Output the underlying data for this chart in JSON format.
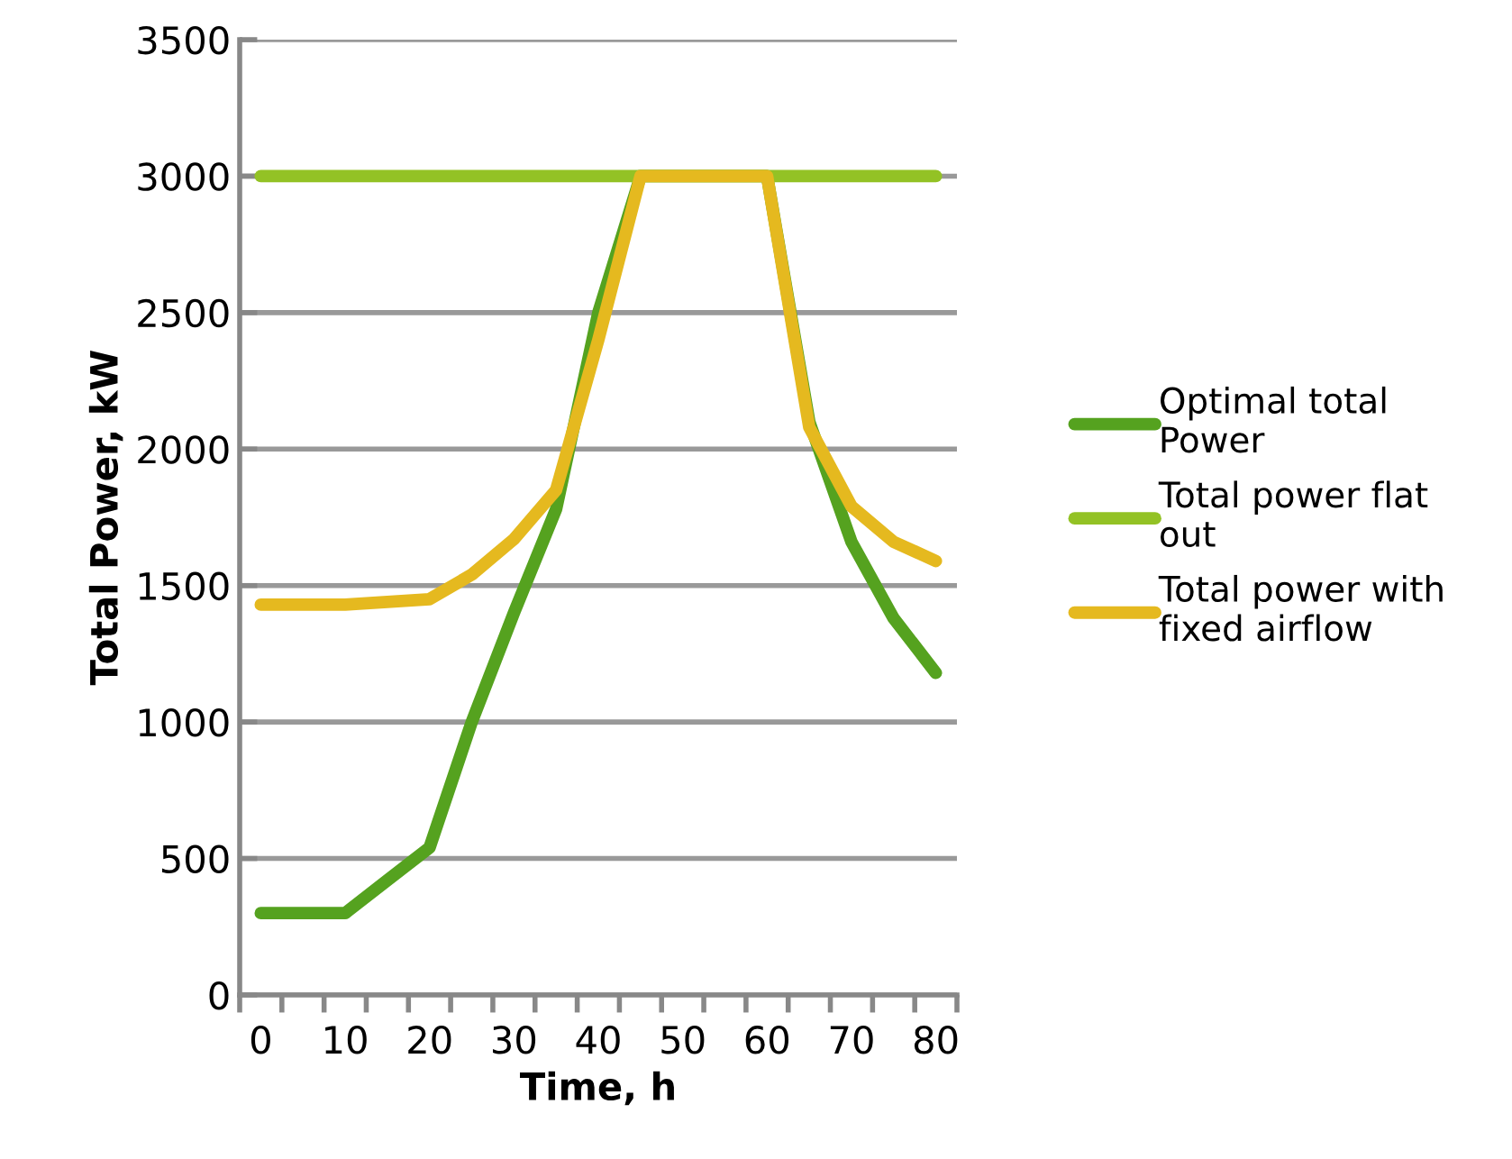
{
  "chart_data": {
    "type": "line",
    "xlabel": "Time, h",
    "ylabel": "Total Power, kW",
    "categories": [
      "0",
      null,
      "10",
      null,
      "20",
      null,
      "30",
      null,
      "40",
      null,
      "50",
      null,
      "60",
      null,
      "70",
      null,
      "80"
    ],
    "series": [
      {
        "name": "Optimal total\nPower",
        "color": "#55a21f",
        "values": [
          300,
          300,
          300,
          420,
          540,
          1000,
          1400,
          1780,
          2500,
          3000,
          3000,
          3000,
          3000,
          2100,
          1660,
          1380,
          1180
        ]
      },
      {
        "name": "Total power flat\nout",
        "color": "#93c225",
        "values": [
          3000,
          3000,
          3000,
          3000,
          3000,
          3000,
          3000,
          3000,
          3000,
          3000,
          3000,
          3000,
          3000,
          3000,
          3000,
          3000,
          3000
        ]
      },
      {
        "name": "Total power with\nfixed airflow",
        "color": "#e5b91f",
        "values": [
          1430,
          1430,
          1430,
          1440,
          1450,
          1540,
          1670,
          1850,
          2400,
          3000,
          3000,
          3000,
          3000,
          2080,
          1790,
          1660,
          1590
        ]
      }
    ],
    "ylim": [
      0,
      3500
    ],
    "yticks": [
      0,
      500,
      1000,
      1500,
      2000,
      2500,
      3000,
      3500
    ],
    "grid": "y",
    "legend": "right",
    "marker": "none",
    "line_style": "solid"
  }
}
